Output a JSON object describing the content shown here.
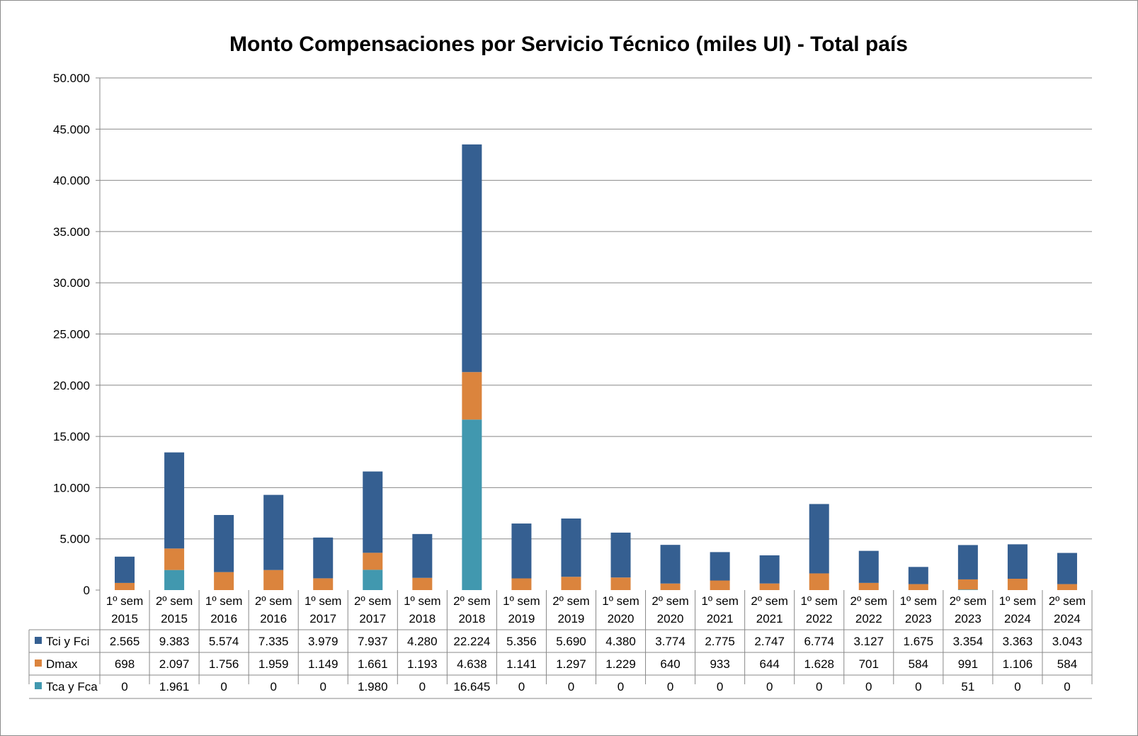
{
  "chart_data": {
    "type": "bar",
    "stacked": true,
    "title": "Monto Compensaciones por Servicio Técnico (miles UI) - Total país",
    "categories": [
      [
        "1º sem",
        "2015"
      ],
      [
        "2º sem",
        "2015"
      ],
      [
        "1º sem",
        "2016"
      ],
      [
        "2º sem",
        "2016"
      ],
      [
        "1º sem",
        "2017"
      ],
      [
        "2º sem",
        "2017"
      ],
      [
        "1º sem",
        "2018"
      ],
      [
        "2º sem",
        "2018"
      ],
      [
        "1º sem",
        "2019"
      ],
      [
        "2º sem",
        "2019"
      ],
      [
        "1º sem",
        "2020"
      ],
      [
        "2º sem",
        "2020"
      ],
      [
        "1º sem",
        "2021"
      ],
      [
        "2º sem",
        "2021"
      ],
      [
        "1º sem",
        "2022"
      ],
      [
        "2º sem",
        "2022"
      ],
      [
        "1º sem",
        "2023"
      ],
      [
        "2º sem",
        "2023"
      ],
      [
        "1º sem",
        "2024"
      ],
      [
        "2º sem",
        "2024"
      ]
    ],
    "series": [
      {
        "name": "Tca y Fca",
        "color": "#4198AF",
        "values": [
          0,
          1961,
          0,
          0,
          0,
          1980,
          0,
          16645,
          0,
          0,
          0,
          0,
          0,
          0,
          0,
          0,
          0,
          51,
          0,
          0
        ],
        "labels": [
          "0",
          "1.961",
          "0",
          "0",
          "0",
          "1.980",
          "0",
          "16.645",
          "0",
          "0",
          "0",
          "0",
          "0",
          "0",
          "0",
          "0",
          "0",
          "51",
          "0",
          "0"
        ]
      },
      {
        "name": "Dmax",
        "color": "#DB843D",
        "values": [
          698,
          2097,
          1756,
          1959,
          1149,
          1661,
          1193,
          4638,
          1141,
          1297,
          1229,
          640,
          933,
          644,
          1628,
          701,
          584,
          991,
          1106,
          584
        ],
        "labels": [
          "698",
          "2.097",
          "1.756",
          "1.959",
          "1.149",
          "1.661",
          "1.193",
          "4.638",
          "1.141",
          "1.297",
          "1.229",
          "640",
          "933",
          "644",
          "1.628",
          "701",
          "584",
          "991",
          "1.106",
          "584"
        ]
      },
      {
        "name": "Tci y Fci",
        "color": "#355F91",
        "values": [
          2565,
          9383,
          5574,
          7335,
          3979,
          7937,
          4280,
          22224,
          5356,
          5690,
          4380,
          3774,
          2775,
          2747,
          6774,
          3127,
          1675,
          3354,
          3363,
          3043
        ],
        "labels": [
          "2.565",
          "9.383",
          "5.574",
          "7.335",
          "3.979",
          "7.937",
          "4.280",
          "22.224",
          "5.356",
          "5.690",
          "4.380",
          "3.774",
          "2.775",
          "2.747",
          "6.774",
          "3.127",
          "1.675",
          "3.354",
          "3.363",
          "3.043"
        ]
      }
    ],
    "table_row_order": [
      "Tci y Fci",
      "Dmax",
      "Tca y Fca"
    ],
    "ylim": [
      0,
      50000
    ],
    "yticks": [
      0,
      5000,
      10000,
      15000,
      20000,
      25000,
      30000,
      35000,
      40000,
      45000,
      50000
    ],
    "ytick_labels": [
      "0",
      "5.000",
      "10.000",
      "15.000",
      "20.000",
      "25.000",
      "30.000",
      "35.000",
      "40.000",
      "45.000",
      "50.000"
    ],
    "grid": true,
    "legend": "data table"
  }
}
